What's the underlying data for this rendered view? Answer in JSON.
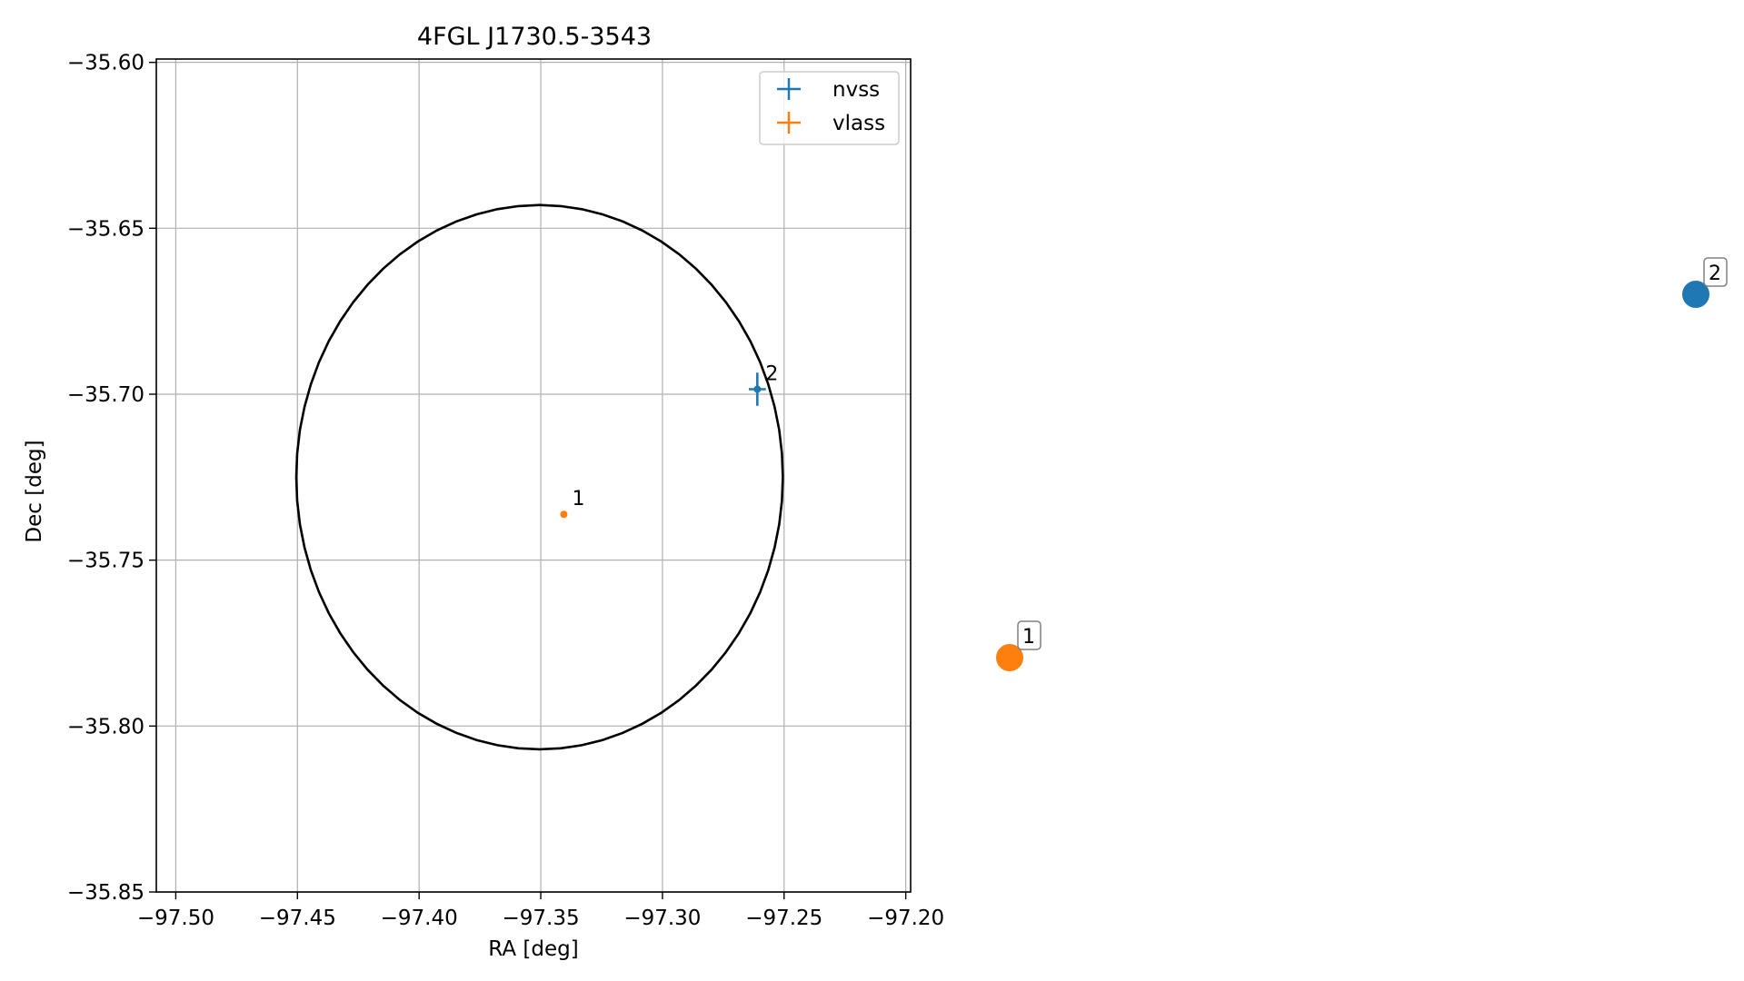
{
  "chart_data": {
    "type": "scatter",
    "title": "4FGL J1730.5-3543",
    "xlabel": "RA [deg]",
    "ylabel": "Dec [deg]",
    "xlim": [
      -97.508,
      -97.198
    ],
    "ylim": [
      -35.85,
      -35.599
    ],
    "x_inverted": false,
    "grid": true,
    "legend_position": "top-right",
    "x_ticks": [
      -97.5,
      -97.45,
      -97.4,
      -97.35,
      -97.3,
      -97.25,
      -97.2
    ],
    "x_tick_labels": [
      "−97.50",
      "−97.45",
      "−97.40",
      "−97.35",
      "−97.30",
      "−97.25",
      "−97.20"
    ],
    "y_ticks": [
      -35.6,
      -35.65,
      -35.7,
      -35.75,
      -35.8,
      -35.85
    ],
    "y_tick_labels": [
      "−35.60",
      "−35.65",
      "−35.70",
      "−35.75",
      "−35.80",
      "−35.85"
    ],
    "ellipse": {
      "center": [
        -97.3505,
        -35.725
      ],
      "semi_axis_ra": 0.1,
      "semi_axis_dec": 0.082,
      "color": "#000000"
    },
    "series": [
      {
        "name": "nvss",
        "color": "#1f77b4",
        "marker": "errorbar",
        "points": [
          {
            "x": -97.261,
            "y": -35.6985,
            "xerr": 0.0035,
            "yerr": 0.005,
            "label": "2"
          }
        ]
      },
      {
        "name": "vlass",
        "color": "#ff7f0e",
        "marker": "errorbar",
        "points": [
          {
            "x": -97.3405,
            "y": -35.7362,
            "xerr": 0.0004,
            "yerr": 0.0004,
            "label": "1"
          }
        ]
      }
    ],
    "side_markers": [
      {
        "label": "1",
        "color": "#ff7f0e"
      },
      {
        "label": "2",
        "color": "#1f77b4"
      }
    ]
  }
}
